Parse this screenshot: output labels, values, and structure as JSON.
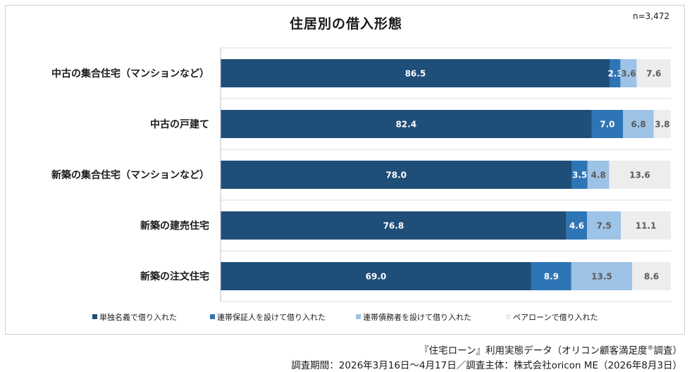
{
  "header": {
    "title": "住居別の借入形態",
    "sample_size": "n=3,472"
  },
  "footer": {
    "source_prefix": "『住宅ローン』利用実態データ（オリコン顧客満足度",
    "source_mark": "®",
    "source_suffix": "調査）",
    "period": "調査期間：2026年3月16日～4月17日／調査主体：株式会社oricon ME（2026年8月3日）"
  },
  "colors": {
    "single": "#1f4e79",
    "guarantor": "#2e75b6",
    "co_debtor": "#9dc3e6",
    "pair": "#ededed"
  },
  "chart_data": {
    "type": "bar",
    "orientation": "horizontal",
    "stacked": true,
    "percent": true,
    "title": "住居別の借入形態",
    "xlim": [
      0,
      100
    ],
    "grid": true,
    "legend_position": "bottom",
    "categories": [
      "中古の集合住宅（マンションなど）",
      "中古の戸建て",
      "新築の集合住宅（マンションなど）",
      "新築の建売住宅",
      "新築の注文住宅"
    ],
    "series": [
      {
        "name": "単独名義で借り入れた",
        "color": "#1f4e79",
        "label_color": "#ffffff",
        "values": [
          86.5,
          82.4,
          78.0,
          76.8,
          69.0
        ]
      },
      {
        "name": "連帯保証人を設けて借り入れた",
        "color": "#2e75b6",
        "label_color": "#ffffff",
        "values": [
          2.3,
          7.0,
          3.5,
          4.6,
          8.9
        ]
      },
      {
        "name": "連帯債務者を設けて借り入れた",
        "color": "#9dc3e6",
        "label_color": "#5a5a5a",
        "values": [
          3.6,
          6.8,
          4.8,
          7.5,
          13.5
        ]
      },
      {
        "name": "ペアローンで借り入れた",
        "color": "#ededed",
        "label_color": "#5a5a5a",
        "values": [
          7.6,
          3.8,
          13.6,
          11.1,
          8.6
        ]
      }
    ]
  }
}
